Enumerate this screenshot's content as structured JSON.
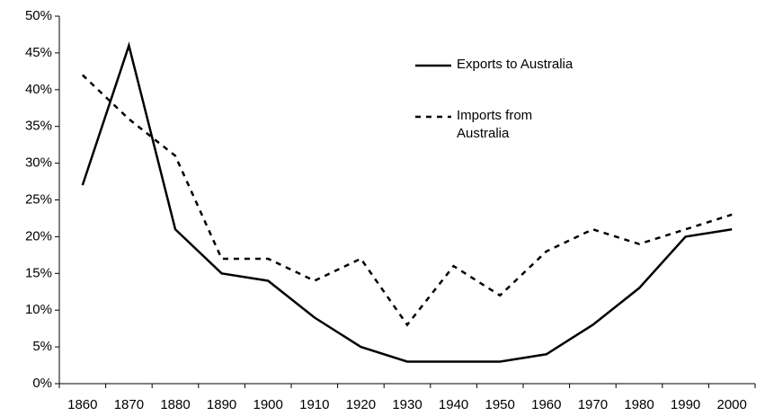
{
  "chart_data": {
    "type": "line",
    "categories": [
      "1860",
      "1870",
      "1880",
      "1890",
      "1900",
      "1910",
      "1920",
      "1930",
      "1940",
      "1950",
      "1960",
      "1970",
      "1980",
      "1990",
      "2000"
    ],
    "series": [
      {
        "name": "Exports to Australia",
        "color": "#000000",
        "dash": "solid",
        "values": [
          27,
          46,
          21,
          15,
          14,
          9,
          5,
          3,
          3,
          3,
          4,
          8,
          13,
          20,
          21
        ]
      },
      {
        "name": "Imports from Australia",
        "color": "#000000",
        "dash": "dashed",
        "values": [
          42,
          36,
          31,
          17,
          17,
          14,
          17,
          8,
          16,
          12,
          18,
          21,
          19,
          21,
          23
        ]
      }
    ],
    "ylim": [
      0,
      50
    ],
    "yticks": [
      {
        "value": 0,
        "label": "0%"
      },
      {
        "value": 5,
        "label": "5%"
      },
      {
        "value": 10,
        "label": "10%"
      },
      {
        "value": 15,
        "label": "15%"
      },
      {
        "value": 20,
        "label": "20%"
      },
      {
        "value": 25,
        "label": "25%"
      },
      {
        "value": 30,
        "label": "30%"
      },
      {
        "value": 35,
        "label": "35%"
      },
      {
        "value": 40,
        "label": "40%"
      },
      {
        "value": 45,
        "label": "45%"
      },
      {
        "value": 50,
        "label": "50%"
      }
    ],
    "grid": false,
    "legend": "upper-right"
  }
}
